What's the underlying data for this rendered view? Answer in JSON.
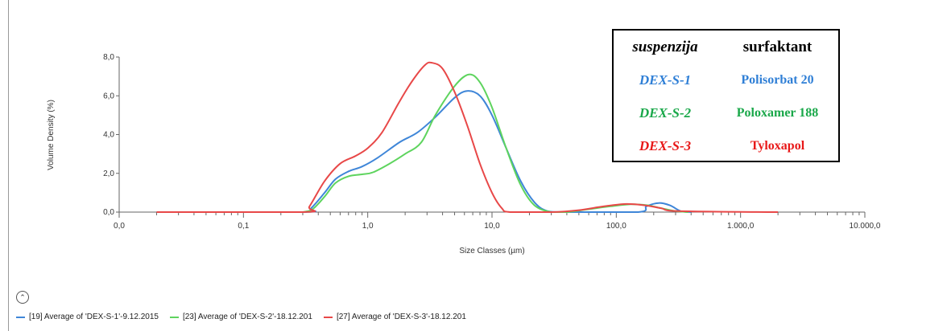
{
  "chart_data": {
    "type": "line",
    "title": "",
    "xlabel": "Size Classes (µm)",
    "ylabel": "Volume Density (%)",
    "xscale": "log",
    "xlim": [
      0.01,
      10000
    ],
    "ylim": [
      0,
      8
    ],
    "x_ticks": [
      {
        "value": 0.01,
        "label": "0,0"
      },
      {
        "value": 0.1,
        "label": "0,1"
      },
      {
        "value": 1,
        "label": "1,0"
      },
      {
        "value": 10,
        "label": "10,0"
      },
      {
        "value": 100,
        "label": "100,0"
      },
      {
        "value": 1000,
        "label": "1.000,0"
      },
      {
        "value": 10000,
        "label": "10.000,0"
      }
    ],
    "y_ticks": [
      {
        "value": 0,
        "label": "0,0"
      },
      {
        "value": 2,
        "label": "2,0"
      },
      {
        "value": 4,
        "label": "4,0"
      },
      {
        "value": 6,
        "label": "6,0"
      },
      {
        "value": 8,
        "label": "8,0"
      }
    ],
    "series": [
      {
        "name": "[19] Average of 'DEX-S-1'-9.12.2015",
        "color": "#3f86d8",
        "points": [
          [
            0.02,
            0
          ],
          [
            0.3,
            0
          ],
          [
            0.35,
            0.2
          ],
          [
            0.45,
            1.0
          ],
          [
            0.55,
            1.7
          ],
          [
            0.7,
            2.1
          ],
          [
            0.9,
            2.35
          ],
          [
            1.2,
            2.8
          ],
          [
            1.8,
            3.6
          ],
          [
            2.5,
            4.1
          ],
          [
            3.5,
            4.9
          ],
          [
            5,
            5.9
          ],
          [
            6.3,
            6.25
          ],
          [
            8,
            6.0
          ],
          [
            10,
            5.0
          ],
          [
            13,
            3.3
          ],
          [
            17,
            1.6
          ],
          [
            22,
            0.5
          ],
          [
            28,
            0.05
          ],
          [
            40,
            0
          ],
          [
            150,
            0
          ],
          [
            175,
            0.3
          ],
          [
            220,
            0.47
          ],
          [
            270,
            0.35
          ],
          [
            330,
            0.05
          ],
          [
            400,
            0
          ]
        ]
      },
      {
        "name": "[23] Average of 'DEX-S-2'-18.12.201",
        "color": "#5ed45e",
        "points": [
          [
            0.3,
            0
          ],
          [
            0.36,
            0.15
          ],
          [
            0.45,
            0.8
          ],
          [
            0.55,
            1.5
          ],
          [
            0.7,
            1.85
          ],
          [
            0.9,
            1.95
          ],
          [
            1.1,
            2.05
          ],
          [
            1.5,
            2.5
          ],
          [
            2,
            3.0
          ],
          [
            2.7,
            3.6
          ],
          [
            3.5,
            5.0
          ],
          [
            5,
            6.5
          ],
          [
            6.5,
            7.1
          ],
          [
            8,
            6.7
          ],
          [
            10,
            5.4
          ],
          [
            13,
            3.3
          ],
          [
            17,
            1.4
          ],
          [
            22,
            0.35
          ],
          [
            30,
            0
          ],
          [
            40,
            0
          ],
          [
            60,
            0.15
          ],
          [
            90,
            0.3
          ],
          [
            130,
            0.4
          ],
          [
            180,
            0.35
          ],
          [
            230,
            0.2
          ],
          [
            300,
            0.05
          ],
          [
            380,
            0
          ]
        ]
      },
      {
        "name": "[27] Average of 'DEX-S-3'-18.12.201",
        "color": "#e84848",
        "points": [
          [
            0.02,
            0
          ],
          [
            0.3,
            0
          ],
          [
            0.34,
            0.3
          ],
          [
            0.45,
            1.6
          ],
          [
            0.6,
            2.5
          ],
          [
            0.8,
            2.9
          ],
          [
            1.0,
            3.3
          ],
          [
            1.3,
            4.1
          ],
          [
            1.8,
            5.7
          ],
          [
            2.3,
            6.8
          ],
          [
            2.9,
            7.6
          ],
          [
            3.3,
            7.7
          ],
          [
            4,
            7.4
          ],
          [
            5,
            6.2
          ],
          [
            6.3,
            4.5
          ],
          [
            8,
            2.5
          ],
          [
            10,
            1.0
          ],
          [
            12,
            0.2
          ],
          [
            14,
            0
          ],
          [
            30,
            0
          ],
          [
            50,
            0.1
          ],
          [
            80,
            0.3
          ],
          [
            120,
            0.42
          ],
          [
            170,
            0.35
          ],
          [
            230,
            0.2
          ],
          [
            320,
            0.05
          ],
          [
            2000,
            0
          ]
        ]
      }
    ]
  },
  "table": {
    "header": {
      "col1": "suspenzija",
      "col2": "surfaktant"
    },
    "rows": [
      {
        "col1": "DEX-S-1",
        "col2": "Polisorbat 20",
        "color": "#2f7fd6"
      },
      {
        "col1": "DEX-S-2",
        "col2": "Poloxamer 188",
        "color": "#1aa84a"
      },
      {
        "col1": "DEX-S-3",
        "col2": "Tyloxapol",
        "color": "#e81818"
      }
    ]
  },
  "legend_toggle_icon": "chevron-up-icon",
  "legend_toggle_glyph": "⌃"
}
